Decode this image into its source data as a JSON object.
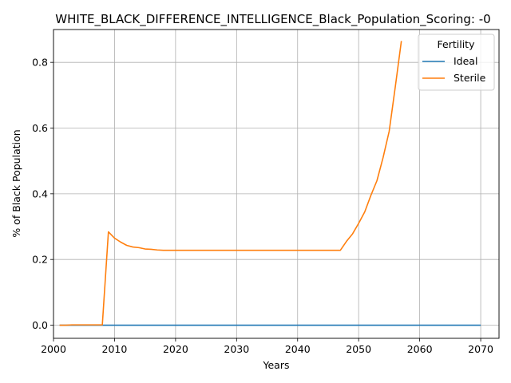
{
  "chart_data": {
    "type": "line",
    "title": "WHITE_BLACK_DIFFERENCE_INTELLIGENCE_Black_Population_Scoring: -0",
    "xlabel": "Years",
    "ylabel": "% of Black Population",
    "xlim": [
      2000,
      2073
    ],
    "ylim": [
      -0.04,
      0.9
    ],
    "xticks": [
      2000,
      2010,
      2020,
      2030,
      2040,
      2050,
      2060,
      2070
    ],
    "xtick_labels": [
      "2000",
      "2010",
      "2020",
      "2030",
      "2040",
      "2050",
      "2060",
      "2070"
    ],
    "yticks": [
      0.0,
      0.2,
      0.4,
      0.6,
      0.8
    ],
    "ytick_labels": [
      "0.0",
      "0.2",
      "0.4",
      "0.6",
      "0.8"
    ],
    "grid": true,
    "legend": {
      "title": "Fertility",
      "placement": "top-right"
    },
    "series": [
      {
        "name": "Ideal",
        "color": "#1f77b4",
        "x": [
          2001,
          2070
        ],
        "y": [
          0.0,
          0.0
        ]
      },
      {
        "name": "Sterile",
        "color": "#ff7f0e",
        "x": [
          2001,
          2002,
          2003,
          2004,
          2005,
          2006,
          2007,
          2008,
          2009,
          2010,
          2011,
          2012,
          2013,
          2014,
          2015,
          2016,
          2017,
          2018,
          2019,
          2020,
          2025,
          2030,
          2035,
          2040,
          2045,
          2047,
          2048,
          2049,
          2050,
          2051,
          2052,
          2053,
          2054,
          2055,
          2056,
          2057
        ],
        "y": [
          0.0,
          0.0,
          0.001,
          0.001,
          0.001,
          0.001,
          0.001,
          0.001,
          0.284,
          0.265,
          0.253,
          0.243,
          0.238,
          0.236,
          0.232,
          0.231,
          0.229,
          0.228,
          0.228,
          0.228,
          0.228,
          0.228,
          0.228,
          0.228,
          0.228,
          0.228,
          0.255,
          0.278,
          0.31,
          0.345,
          0.395,
          0.44,
          0.51,
          0.59,
          0.725,
          0.865
        ]
      }
    ]
  }
}
